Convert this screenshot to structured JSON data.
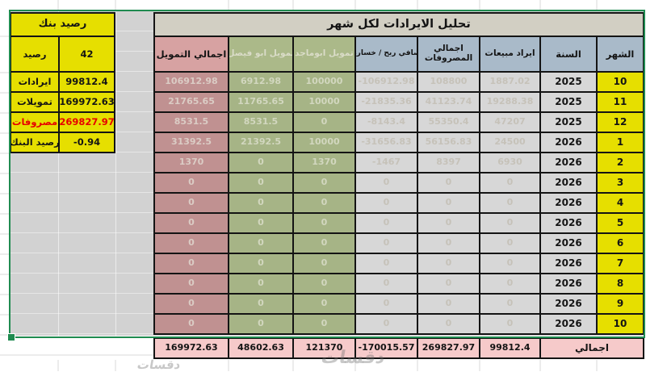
{
  "left_panel": {
    "title": "رصيد بنك",
    "rows": [
      {
        "label": "رصيد",
        "value": "42"
      },
      {
        "label": "ايرادات",
        "value": "99812.4"
      },
      {
        "label": "تمويلات",
        "value": "169972.63"
      },
      {
        "label": "مصروفات",
        "value": "269827.97"
      },
      {
        "label": "رصيد البنك",
        "value": "-0.94"
      }
    ]
  },
  "main_table": {
    "title": "تحليل الايرادات لكل شهر",
    "columns_ltr": [
      "اجمالي التمويل",
      "تمويل ابو فيصل",
      "تمويل ابوماجد",
      "صافي ربح / خسارة",
      "اجمالي المصروفات",
      "ايراد مبيعات",
      "السنة",
      "الشهر"
    ],
    "column_keys": [
      "total-funding",
      "funding-abu-faisal",
      "funding-abu-majed",
      "net-profit-loss",
      "total-expenses",
      "sales-revenue",
      "year",
      "month"
    ],
    "rows": [
      [
        "106912.98",
        "6912.98",
        "100000",
        "-106912.98",
        "108800",
        "1887.02",
        "2025",
        "10"
      ],
      [
        "21765.65",
        "11765.65",
        "10000",
        "-21835.36",
        "41123.74",
        "19288.38",
        "2025",
        "11"
      ],
      [
        "8531.5",
        "8531.5",
        "0",
        "-8143.4",
        "55350.4",
        "47207",
        "2025",
        "12"
      ],
      [
        "31392.5",
        "21392.5",
        "10000",
        "-31656.83",
        "56156.83",
        "24500",
        "2026",
        "1"
      ],
      [
        "1370",
        "0",
        "1370",
        "-1467",
        "8397",
        "6930",
        "2026",
        "2"
      ],
      [
        "0",
        "0",
        "0",
        "0",
        "0",
        "0",
        "2026",
        "3"
      ],
      [
        "0",
        "0",
        "0",
        "0",
        "0",
        "0",
        "2026",
        "4"
      ],
      [
        "0",
        "0",
        "0",
        "0",
        "0",
        "0",
        "2026",
        "5"
      ],
      [
        "0",
        "0",
        "0",
        "0",
        "0",
        "0",
        "2026",
        "6"
      ],
      [
        "0",
        "0",
        "0",
        "0",
        "0",
        "0",
        "2026",
        "7"
      ],
      [
        "0",
        "0",
        "0",
        "0",
        "0",
        "0",
        "2026",
        "8"
      ],
      [
        "0",
        "0",
        "0",
        "0",
        "0",
        "0",
        "2026",
        "9"
      ],
      [
        "0",
        "0",
        "0",
        "0",
        "0",
        "0",
        "2026",
        "10"
      ]
    ],
    "totals": {
      "label": "اجمالي",
      "total_funding": "169972.63",
      "abu_faisal": "48602.63",
      "abu_majed": "121370",
      "net": "-170015.57",
      "expenses": "269827.97",
      "sales": "99812.4"
    }
  },
  "watermark": {
    "text": "دقسات"
  },
  "colors": {
    "selection_green": "#1f8b50",
    "cell_yellow": "#e6df00",
    "header_blue_gray": "#a9bac9",
    "header_rose": "#d7a2a2",
    "data_rose": "#c09191",
    "data_olive": "#a6b486",
    "data_gray": "#d7d7d7",
    "totals_pink": "#f6caca",
    "title_beige": "#d2cfc3",
    "negative_red_text": "#e60000",
    "grid_border_black": "#141414"
  }
}
